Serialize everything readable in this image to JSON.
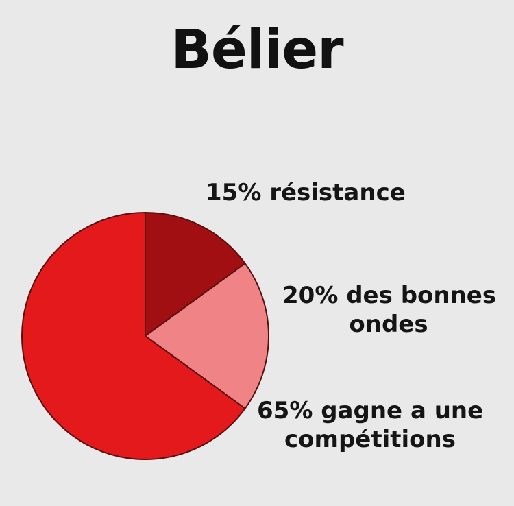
{
  "chart_data": {
    "type": "pie",
    "title": "Bélier",
    "slices": [
      {
        "value": 15,
        "label_lines": [
          "15% résistance"
        ],
        "color": "#a10f12"
      },
      {
        "value": 20,
        "label_lines": [
          "20% des bonnes",
          "ondes"
        ],
        "color": "#f08385"
      },
      {
        "value": 65,
        "label_lines": [
          "65% gagne a une",
          "compétitions"
        ],
        "color": "#e4191b"
      }
    ]
  }
}
